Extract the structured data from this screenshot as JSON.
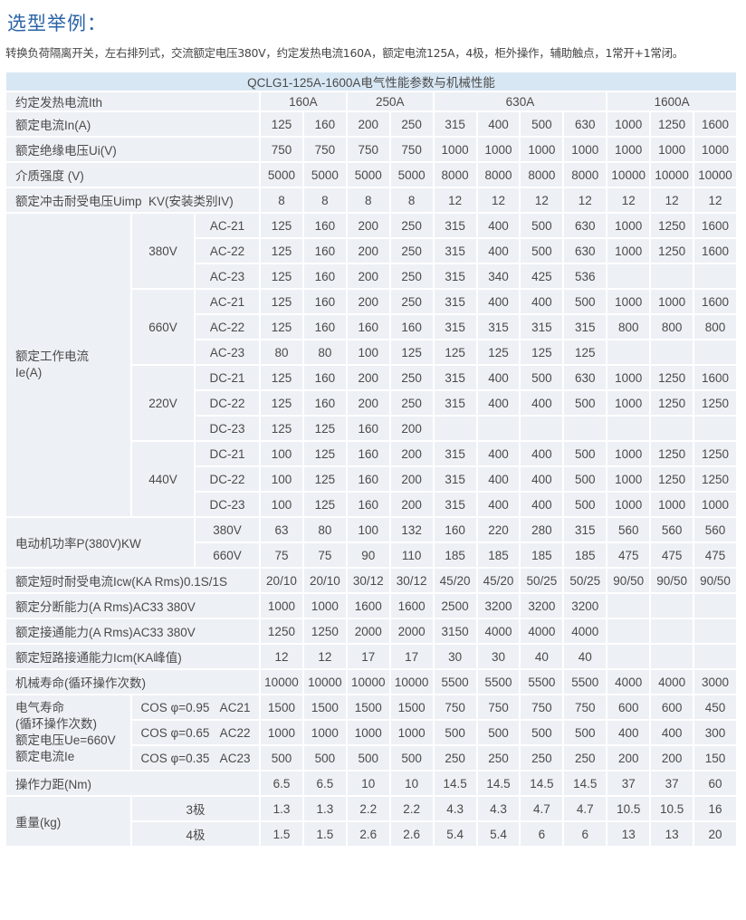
{
  "page": {
    "title": "选型举例：",
    "description": "转换负荷隔离开关，左右排列式，交流额定电压380V，约定发热电流160A，额定电流125A，4极，柜外操作，辅助触点，1常开+1常闭。"
  },
  "table": {
    "caption": "QCLG1-125A-1600A电气性能参数与机械性能",
    "ith": {
      "label": "约定发热电流Ith",
      "groups": [
        "160A",
        "250A",
        "630A",
        "1600A"
      ]
    },
    "rated_current": {
      "label": "额定电流In(A)",
      "values": [
        "125",
        "160",
        "200",
        "250",
        "315",
        "400",
        "500",
        "630",
        "1000",
        "1250",
        "1600"
      ]
    },
    "insulation_voltage": {
      "label": "额定绝缘电压Ui(V)",
      "values": [
        "750",
        "750",
        "750",
        "750",
        "1000",
        "1000",
        "1000",
        "1000",
        "1000",
        "1000",
        "1000"
      ]
    },
    "dielectric_strength": {
      "label": "介质强度 (V)",
      "values": [
        "5000",
        "5000",
        "5000",
        "5000",
        "8000",
        "8000",
        "8000",
        "8000",
        "10000",
        "10000",
        "10000"
      ]
    },
    "impulse_voltage": {
      "label": "额定冲击耐受电压Uimp  KV(安装类别IV)",
      "values": [
        "8",
        "8",
        "8",
        "8",
        "12",
        "12",
        "12",
        "12",
        "12",
        "12",
        "12"
      ]
    },
    "operating_current": {
      "label_lines": [
        "额定工作电流",
        "Ie(A)"
      ],
      "groups": [
        {
          "voltage": "380V",
          "rows": [
            {
              "category": "AC-21",
              "values": [
                "125",
                "160",
                "200",
                "250",
                "315",
                "400",
                "500",
                "630",
                "1000",
                "1250",
                "1600"
              ]
            },
            {
              "category": "AC-22",
              "values": [
                "125",
                "160",
                "200",
                "250",
                "315",
                "400",
                "500",
                "630",
                "1000",
                "1250",
                "1600"
              ]
            },
            {
              "category": "AC-23",
              "values": [
                "125",
                "160",
                "200",
                "250",
                "315",
                "340",
                "425",
                "536",
                "",
                "",
                ""
              ]
            }
          ]
        },
        {
          "voltage": "660V",
          "rows": [
            {
              "category": "AC-21",
              "values": [
                "125",
                "160",
                "200",
                "250",
                "315",
                "400",
                "400",
                "500",
                "1000",
                "1000",
                "1600"
              ]
            },
            {
              "category": "AC-22",
              "values": [
                "125",
                "160",
                "160",
                "160",
                "315",
                "315",
                "315",
                "315",
                "800",
                "800",
                "800"
              ]
            },
            {
              "category": "AC-23",
              "values": [
                "80",
                "80",
                "100",
                "125",
                "125",
                "125",
                "125",
                "125",
                "",
                "",
                ""
              ]
            }
          ]
        },
        {
          "voltage": "220V",
          "rows": [
            {
              "category": "DC-21",
              "values": [
                "125",
                "160",
                "200",
                "250",
                "315",
                "400",
                "500",
                "630",
                "1000",
                "1250",
                "1600"
              ]
            },
            {
              "category": "DC-22",
              "values": [
                "125",
                "160",
                "200",
                "250",
                "315",
                "400",
                "400",
                "500",
                "1000",
                "1250",
                "1250"
              ]
            },
            {
              "category": "DC-23",
              "values": [
                "125",
                "125",
                "160",
                "200",
                "",
                "",
                "",
                "",
                "",
                "",
                ""
              ]
            }
          ]
        },
        {
          "voltage": "440V",
          "rows": [
            {
              "category": "DC-21",
              "values": [
                "100",
                "125",
                "160",
                "200",
                "315",
                "400",
                "400",
                "500",
                "1000",
                "1250",
                "1250"
              ]
            },
            {
              "category": "DC-22",
              "values": [
                "100",
                "125",
                "160",
                "200",
                "315",
                "400",
                "400",
                "500",
                "1000",
                "1250",
                "1250"
              ]
            },
            {
              "category": "DC-23",
              "values": [
                "100",
                "125",
                "160",
                "200",
                "315",
                "400",
                "400",
                "500",
                "1000",
                "1000",
                "1000"
              ]
            }
          ]
        }
      ]
    },
    "motor_power": {
      "label": "电动机功率P(380V)KW",
      "rows": [
        {
          "voltage": "380V",
          "values": [
            "63",
            "80",
            "100",
            "132",
            "160",
            "220",
            "280",
            "315",
            "560",
            "560",
            "560"
          ]
        },
        {
          "voltage": "660V",
          "values": [
            "75",
            "75",
            "90",
            "110",
            "185",
            "185",
            "185",
            "185",
            "475",
            "475",
            "475"
          ]
        }
      ]
    },
    "short_time_current": {
      "label": "额定短时耐受电流Icw(KA Rms)0.1S/1S",
      "values": [
        "20/10",
        "20/10",
        "30/12",
        "30/12",
        "45/20",
        "45/20",
        "50/25",
        "50/25",
        "90/50",
        "90/50",
        "90/50"
      ]
    },
    "breaking_capacity": {
      "label": "额定分断能力(A Rms)AC33 380V",
      "values": [
        "1000",
        "1000",
        "1600",
        "1600",
        "2500",
        "3200",
        "3200",
        "3200",
        "",
        "",
        ""
      ]
    },
    "making_capacity": {
      "label": "额定接通能力(A Rms)AC33 380V",
      "values": [
        "1250",
        "1250",
        "2000",
        "2000",
        "3150",
        "4000",
        "4000",
        "4000",
        "",
        "",
        ""
      ]
    },
    "short_circuit_making": {
      "label": "额定短路接通能力Icm(KA峰值)",
      "values": [
        "12",
        "12",
        "17",
        "17",
        "30",
        "30",
        "40",
        "40",
        "",
        "",
        ""
      ]
    },
    "mechanical_life": {
      "label": "机械寿命(循环操作次数)",
      "values": [
        "10000",
        "10000",
        "10000",
        "10000",
        "5500",
        "5500",
        "5500",
        "5500",
        "4000",
        "4000",
        "3000"
      ]
    },
    "electrical_life": {
      "label_lines": [
        "电气寿命",
        "(循环操作次数)",
        "额定电压Ue=660V",
        "额定电流Ie"
      ],
      "rows": [
        {
          "condition": "COS φ=0.95   AC21",
          "values": [
            "1500",
            "1500",
            "1500",
            "1500",
            "750",
            "750",
            "750",
            "750",
            "600",
            "600",
            "450"
          ]
        },
        {
          "condition": "COS φ=0.65   AC22",
          "values": [
            "1000",
            "1000",
            "1000",
            "1000",
            "500",
            "500",
            "500",
            "500",
            "400",
            "400",
            "300"
          ]
        },
        {
          "condition": "COS φ=0.35   AC23",
          "values": [
            "500",
            "500",
            "500",
            "500",
            "250",
            "250",
            "250",
            "250",
            "200",
            "200",
            "150"
          ]
        }
      ]
    },
    "operating_torque": {
      "label": "操作力距(Nm)",
      "values": [
        "6.5",
        "6.5",
        "10",
        "10",
        "14.5",
        "14.5",
        "14.5",
        "14.5",
        "37",
        "37",
        "60"
      ]
    },
    "weight": {
      "label": "重量(kg)",
      "rows": [
        {
          "poles": "3极",
          "values": [
            "1.3",
            "1.3",
            "2.2",
            "2.2",
            "4.3",
            "4.3",
            "4.7",
            "4.7",
            "10.5",
            "10.5",
            "16"
          ]
        },
        {
          "poles": "4极",
          "values": [
            "1.5",
            "1.5",
            "2.6",
            "2.6",
            "5.4",
            "5.4",
            "6",
            "6",
            "13",
            "13",
            "20"
          ]
        }
      ]
    }
  },
  "colors": {
    "title": "#2a63a6",
    "header_bg": "#d8e7f4",
    "cell_bg": "#edf0f4",
    "border": "#ffffff"
  }
}
